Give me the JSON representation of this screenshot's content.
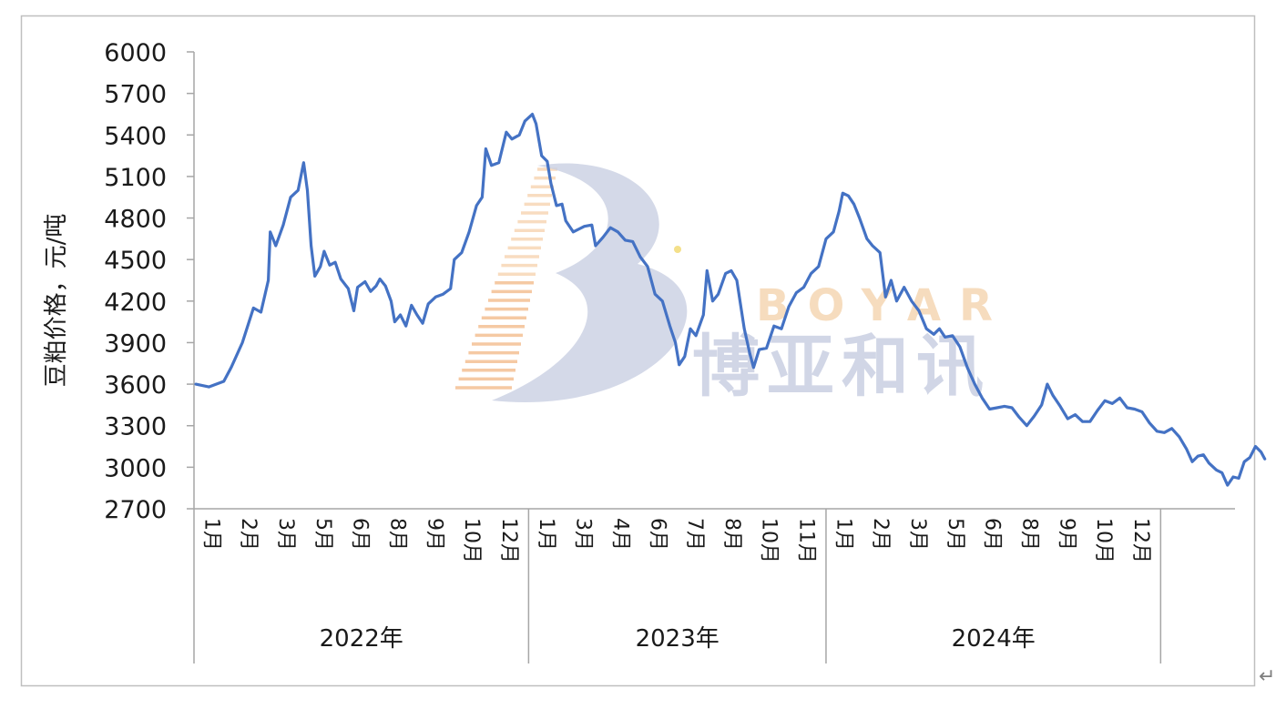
{
  "chart_data": {
    "type": "line",
    "ylabel": "豆粕价格，元/吨",
    "xlabel": "",
    "ylim": [
      2700,
      6000
    ],
    "yticks": [
      2700,
      3000,
      3300,
      3600,
      3900,
      4200,
      4500,
      4800,
      5100,
      5400,
      5700,
      6000
    ],
    "yticks_text": [
      "2700",
      "3000",
      "3300",
      "3600",
      "3900",
      "4200",
      "4500",
      "4800",
      "5100",
      "5400",
      "5700",
      "6000"
    ],
    "legend": "none",
    "grid": false,
    "colors": {
      "line": "#4472c4"
    },
    "years": [
      {
        "label": "2022年",
        "months": [
          "1月",
          "2月",
          "3月",
          "5月",
          "6月",
          "8月",
          "9月",
          "10月",
          "12月"
        ]
      },
      {
        "label": "2023年",
        "months": [
          "1月",
          "3月",
          "4月",
          "6月",
          "7月",
          "8月",
          "10月",
          "11月"
        ]
      },
      {
        "label": "2024年",
        "months": [
          "1月",
          "2月",
          "3月",
          "5月",
          "6月",
          "8月",
          "9月",
          "10月",
          "12月"
        ]
      }
    ],
    "x_positions": 28,
    "series": [
      {
        "values": [
          [
            0.05,
            3600
          ],
          [
            0.4,
            3580
          ],
          [
            0.8,
            3620
          ],
          [
            1.0,
            3720
          ],
          [
            1.3,
            3900
          ],
          [
            1.6,
            4150
          ],
          [
            1.8,
            4120
          ],
          [
            2.0,
            4350
          ],
          [
            2.05,
            4700
          ],
          [
            2.2,
            4600
          ],
          [
            2.4,
            4750
          ],
          [
            2.6,
            4950
          ],
          [
            2.8,
            5000
          ],
          [
            2.95,
            5200
          ],
          [
            3.05,
            5000
          ],
          [
            3.15,
            4600
          ],
          [
            3.25,
            4380
          ],
          [
            3.4,
            4450
          ],
          [
            3.5,
            4560
          ],
          [
            3.65,
            4460
          ],
          [
            3.8,
            4480
          ],
          [
            3.95,
            4360
          ],
          [
            4.15,
            4290
          ],
          [
            4.3,
            4130
          ],
          [
            4.4,
            4300
          ],
          [
            4.6,
            4340
          ],
          [
            4.75,
            4270
          ],
          [
            4.9,
            4310
          ],
          [
            5.0,
            4360
          ],
          [
            5.15,
            4310
          ],
          [
            5.3,
            4200
          ],
          [
            5.4,
            4050
          ],
          [
            5.55,
            4100
          ],
          [
            5.7,
            4020
          ],
          [
            5.85,
            4170
          ],
          [
            6.0,
            4100
          ],
          [
            6.15,
            4040
          ],
          [
            6.3,
            4180
          ],
          [
            6.5,
            4230
          ],
          [
            6.7,
            4250
          ],
          [
            6.9,
            4290
          ],
          [
            7.0,
            4500
          ],
          [
            7.2,
            4550
          ],
          [
            7.4,
            4700
          ],
          [
            7.6,
            4890
          ],
          [
            7.75,
            4950
          ],
          [
            7.85,
            5300
          ],
          [
            8.0,
            5180
          ],
          [
            8.2,
            5200
          ],
          [
            8.4,
            5420
          ],
          [
            8.55,
            5370
          ],
          [
            8.75,
            5400
          ],
          [
            8.9,
            5500
          ],
          [
            9.1,
            5550
          ],
          [
            9.2,
            5480
          ],
          [
            9.35,
            5250
          ],
          [
            9.5,
            5210
          ],
          [
            9.6,
            5050
          ],
          [
            9.75,
            4890
          ],
          [
            9.9,
            4900
          ],
          [
            10.0,
            4780
          ],
          [
            10.2,
            4700
          ],
          [
            10.5,
            4740
          ],
          [
            10.7,
            4750
          ],
          [
            10.8,
            4600
          ],
          [
            11.0,
            4660
          ],
          [
            11.2,
            4730
          ],
          [
            11.4,
            4700
          ],
          [
            11.6,
            4640
          ],
          [
            11.8,
            4630
          ],
          [
            12.0,
            4520
          ],
          [
            12.2,
            4450
          ],
          [
            12.4,
            4250
          ],
          [
            12.6,
            4200
          ],
          [
            12.8,
            4020
          ],
          [
            12.95,
            3900
          ],
          [
            13.05,
            3740
          ],
          [
            13.2,
            3800
          ],
          [
            13.35,
            4000
          ],
          [
            13.5,
            3950
          ],
          [
            13.7,
            4100
          ],
          [
            13.8,
            4420
          ],
          [
            13.95,
            4200
          ],
          [
            14.1,
            4250
          ],
          [
            14.3,
            4400
          ],
          [
            14.45,
            4420
          ],
          [
            14.6,
            4350
          ],
          [
            14.8,
            4000
          ],
          [
            14.95,
            3820
          ],
          [
            15.05,
            3720
          ],
          [
            15.2,
            3850
          ],
          [
            15.4,
            3860
          ],
          [
            15.6,
            4020
          ],
          [
            15.8,
            4000
          ],
          [
            16.0,
            4160
          ],
          [
            16.2,
            4260
          ],
          [
            16.4,
            4300
          ],
          [
            16.6,
            4400
          ],
          [
            16.8,
            4450
          ],
          [
            17.0,
            4650
          ],
          [
            17.2,
            4700
          ],
          [
            17.35,
            4850
          ],
          [
            17.45,
            4980
          ],
          [
            17.6,
            4960
          ],
          [
            17.75,
            4900
          ],
          [
            17.9,
            4800
          ],
          [
            18.1,
            4650
          ],
          [
            18.25,
            4600
          ],
          [
            18.45,
            4550
          ],
          [
            18.6,
            4230
          ],
          [
            18.75,
            4350
          ],
          [
            18.9,
            4200
          ],
          [
            19.1,
            4300
          ],
          [
            19.3,
            4200
          ],
          [
            19.5,
            4130
          ],
          [
            19.7,
            4000
          ],
          [
            19.9,
            3960
          ],
          [
            20.05,
            4000
          ],
          [
            20.2,
            3940
          ],
          [
            20.4,
            3950
          ],
          [
            20.6,
            3870
          ],
          [
            20.8,
            3720
          ],
          [
            21.0,
            3600
          ],
          [
            21.2,
            3500
          ],
          [
            21.4,
            3420
          ],
          [
            21.6,
            3430
          ],
          [
            21.8,
            3440
          ],
          [
            22.0,
            3430
          ],
          [
            22.2,
            3360
          ],
          [
            22.4,
            3300
          ],
          [
            22.6,
            3370
          ],
          [
            22.8,
            3450
          ],
          [
            22.95,
            3600
          ],
          [
            23.1,
            3520
          ],
          [
            23.3,
            3440
          ],
          [
            23.5,
            3350
          ],
          [
            23.7,
            3380
          ],
          [
            23.9,
            3330
          ],
          [
            24.1,
            3330
          ],
          [
            24.3,
            3410
          ],
          [
            24.5,
            3480
          ],
          [
            24.7,
            3460
          ],
          [
            24.9,
            3500
          ],
          [
            25.1,
            3430
          ],
          [
            25.3,
            3420
          ],
          [
            25.5,
            3400
          ],
          [
            25.7,
            3320
          ],
          [
            25.9,
            3260
          ],
          [
            26.1,
            3250
          ],
          [
            26.3,
            3280
          ],
          [
            26.5,
            3220
          ],
          [
            26.7,
            3130
          ],
          [
            26.85,
            3040
          ],
          [
            27.0,
            3080
          ],
          [
            27.15,
            3090
          ],
          [
            27.3,
            3030
          ],
          [
            27.5,
            2980
          ],
          [
            27.65,
            2960
          ],
          [
            27.8,
            2870
          ],
          [
            27.95,
            2930
          ],
          [
            28.1,
            2920
          ],
          [
            28.25,
            3040
          ],
          [
            28.4,
            3070
          ],
          [
            28.55,
            3150
          ],
          [
            28.7,
            3110
          ],
          [
            28.8,
            3060
          ]
        ]
      }
    ]
  },
  "watermark": {
    "brand_en": "BOYAR",
    "brand_cn": "博亚和讯"
  },
  "corner_mark": "↵"
}
